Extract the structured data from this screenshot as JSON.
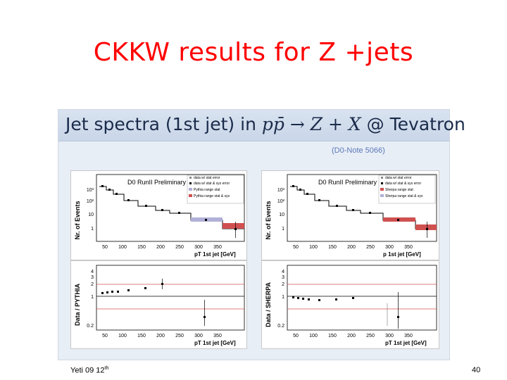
{
  "slide": {
    "title": "CKKW results for Z +jets",
    "footer_left_main": "Yeti 09 12",
    "footer_left_sup": "th",
    "page_number": "40"
  },
  "figure": {
    "header_prefix": "Jet spectra (1st jet) in ",
    "header_process": "pp̄ → Z + X",
    "header_suffix": " @ Tevatron",
    "note": "(D0-Note 5066)"
  },
  "plots": {
    "pythia_top": {
      "ylabel": "Nr. of Events",
      "banner": "D0 RunII Preliminary",
      "legend": [
        "data w/ stat error",
        "data w/ stat & sys error",
        "Pythia range stat",
        "Pythia range stat & sys"
      ],
      "yticks": [
        "10³",
        "10²",
        "10",
        "1"
      ],
      "xticks": [
        "50",
        "100",
        "150",
        "200",
        "250",
        "300",
        "350"
      ],
      "xlabel": "pT 1st jet [GeV]"
    },
    "sherpa_top": {
      "ylabel": "Nr. of Events",
      "banner": "D0 RunII Preliminary",
      "legend": [
        "data w/ stat error",
        "data w/ stat & sys error",
        "Sherpa range stat",
        "Sherpa range stat & sys"
      ],
      "yticks": [
        "10³",
        "10²",
        "10",
        "1"
      ],
      "xticks": [
        "50",
        "100",
        "150",
        "200",
        "250",
        "300",
        "350"
      ],
      "xlabel": "p  1st jet [GeV]"
    },
    "pythia_ratio": {
      "ylabel": "Data / PYTHIA",
      "yticks": [
        "4",
        "3",
        "2",
        "1",
        "0.2"
      ],
      "xticks": [
        "50",
        "100",
        "150",
        "200",
        "250",
        "300",
        "350"
      ],
      "xlabel": "pT 1st jet [GeV]"
    },
    "sherpa_ratio": {
      "ylabel": "Data / SHERPA",
      "yticks": [
        "4",
        "3",
        "2",
        "1",
        "0.2"
      ],
      "xticks": [
        "50",
        "100",
        "150",
        "200",
        "250",
        "300",
        "350"
      ],
      "xlabel": "pT 1st jet [GeV]"
    }
  }
}
